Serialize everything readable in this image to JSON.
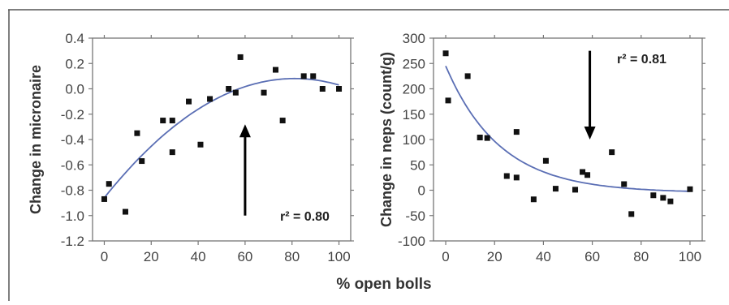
{
  "shared_xlabel": "% open bolls",
  "chart_data": [
    {
      "type": "scatter",
      "title": "",
      "xlabel": "",
      "ylabel": "Change in micronaire",
      "xlim": [
        -5,
        105
      ],
      "ylim": [
        -1.2,
        0.4
      ],
      "xticks": [
        0,
        20,
        40,
        60,
        80,
        100
      ],
      "yticks": [
        -1.2,
        -1.0,
        -0.8,
        -0.6,
        -0.4,
        -0.2,
        0.0,
        0.2,
        0.4
      ],
      "ytick_labels": [
        "-1.2",
        "-1.0",
        "-0.8",
        "-0.6",
        "-0.4",
        "-0.2",
        "0.0",
        "0.2",
        "0.4"
      ],
      "xtick_labels": [
        "0",
        "20",
        "40",
        "60",
        "80",
        "100"
      ],
      "points": [
        {
          "x": 0,
          "y": -0.87
        },
        {
          "x": 2,
          "y": -0.75
        },
        {
          "x": 9,
          "y": -0.97
        },
        {
          "x": 14,
          "y": -0.35
        },
        {
          "x": 16,
          "y": -0.57
        },
        {
          "x": 25,
          "y": -0.25
        },
        {
          "x": 29,
          "y": -0.25
        },
        {
          "x": 29,
          "y": -0.5
        },
        {
          "x": 36,
          "y": -0.1
        },
        {
          "x": 41,
          "y": -0.44
        },
        {
          "x": 45,
          "y": -0.08
        },
        {
          "x": 53,
          "y": 0.0
        },
        {
          "x": 56,
          "y": -0.03
        },
        {
          "x": 58,
          "y": 0.25
        },
        {
          "x": 68,
          "y": -0.03
        },
        {
          "x": 73,
          "y": 0.15
        },
        {
          "x": 76,
          "y": -0.25
        },
        {
          "x": 85,
          "y": 0.1
        },
        {
          "x": 89,
          "y": 0.1
        },
        {
          "x": 93,
          "y": 0.0
        },
        {
          "x": 100,
          "y": 0.0
        }
      ],
      "fit": {
        "type": "quadratic",
        "coefficients": [
          -0.86,
          0.0232,
          -0.000143
        ],
        "x_range": [
          0,
          100
        ],
        "color": "#5a6eb4"
      },
      "annotation": {
        "text": "r² = 0.80"
      },
      "arrow": {
        "x": 60,
        "y_from": -1.0,
        "y_to": -0.28,
        "direction": "up"
      }
    },
    {
      "type": "scatter",
      "title": "",
      "xlabel": "",
      "ylabel": "Change in neps (count/g)",
      "xlim": [
        -5,
        105
      ],
      "ylim": [
        -100,
        300
      ],
      "xticks": [
        0,
        20,
        40,
        60,
        80,
        100
      ],
      "yticks": [
        -100,
        -50,
        0,
        50,
        100,
        150,
        200,
        250,
        300
      ],
      "ytick_labels": [
        "-100",
        "-50",
        "0",
        "50",
        "100",
        "150",
        "200",
        "250",
        "300"
      ],
      "xtick_labels": [
        "0",
        "20",
        "40",
        "60",
        "80",
        "100"
      ],
      "points": [
        {
          "x": 0,
          "y": 270
        },
        {
          "x": 1,
          "y": 177
        },
        {
          "x": 9,
          "y": 225
        },
        {
          "x": 14,
          "y": 104
        },
        {
          "x": 17,
          "y": 103
        },
        {
          "x": 25,
          "y": 28
        },
        {
          "x": 29,
          "y": 25
        },
        {
          "x": 29,
          "y": 115
        },
        {
          "x": 36,
          "y": -18
        },
        {
          "x": 41,
          "y": 58
        },
        {
          "x": 45,
          "y": 3
        },
        {
          "x": 53,
          "y": 1
        },
        {
          "x": 56,
          "y": 36
        },
        {
          "x": 58,
          "y": 30
        },
        {
          "x": 68,
          "y": 75
        },
        {
          "x": 73,
          "y": 12
        },
        {
          "x": 76,
          "y": -47
        },
        {
          "x": 85,
          "y": -10
        },
        {
          "x": 89,
          "y": -15
        },
        {
          "x": 92,
          "y": -22
        },
        {
          "x": 100,
          "y": 2
        }
      ],
      "fit": {
        "type": "exponential",
        "a": 250,
        "k": 0.045,
        "c": -5,
        "x_range": [
          0,
          100
        ],
        "color": "#5a6eb4"
      },
      "annotation": {
        "text": "r² = 0.81"
      },
      "arrow": {
        "x": 59,
        "y_from": 275,
        "y_to": 100,
        "direction": "down"
      }
    }
  ]
}
